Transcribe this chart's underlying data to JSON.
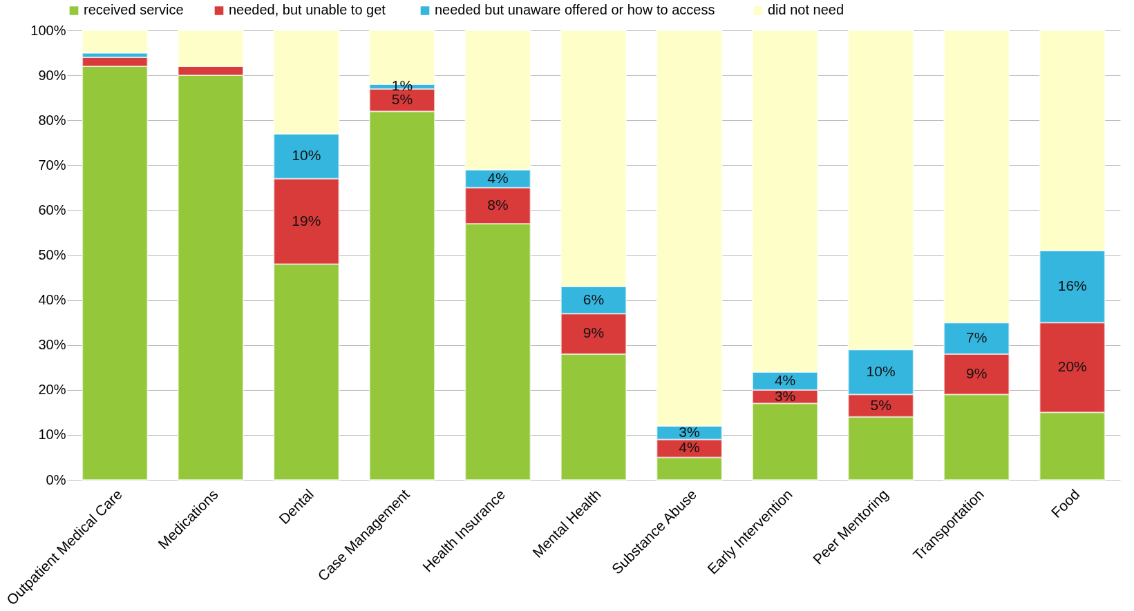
{
  "chart_data": {
    "type": "bar",
    "stacked": true,
    "categories": [
      "Outpatient Medical Care",
      "Medications",
      "Dental",
      "Case Management",
      "Health Insurance",
      "Mental Health",
      "Substance Abuse",
      "Early Intervention",
      "Peer Mentoring",
      "Transportation",
      "Food"
    ],
    "series": [
      {
        "name": "received service",
        "color": "#94c83a",
        "values": [
          92,
          90,
          48,
          82,
          57,
          28,
          5,
          17,
          14,
          19,
          15
        ],
        "value_labels": [
          null,
          null,
          null,
          null,
          null,
          null,
          null,
          null,
          null,
          null,
          null
        ]
      },
      {
        "name": "needed, but  unable to get",
        "color": "#d93a3a",
        "values": [
          2,
          2,
          19,
          5,
          8,
          9,
          4,
          3,
          5,
          9,
          20
        ],
        "value_labels": [
          null,
          null,
          "19%",
          "5%",
          "8%",
          "9%",
          "4%",
          "3%",
          "5%",
          "9%",
          "20%"
        ]
      },
      {
        "name": "needed but unaware  offered or how to  access",
        "color": "#35b6de",
        "values": [
          1,
          0,
          10,
          1,
          4,
          6,
          3,
          4,
          10,
          7,
          16
        ],
        "value_labels": [
          null,
          null,
          "10%",
          "1%",
          "4%",
          "6%",
          "3%",
          "4%",
          "10%",
          "7%",
          "16%"
        ]
      },
      {
        "name": "did not need",
        "color": "#fefec8",
        "values": [
          5,
          8,
          23,
          12,
          31,
          57,
          88,
          76,
          71,
          65,
          49
        ],
        "value_labels": [
          null,
          null,
          null,
          null,
          null,
          null,
          null,
          null,
          null,
          null,
          null
        ]
      }
    ],
    "ylim": [
      0,
      100
    ],
    "yticks": [
      {
        "value": 0,
        "label": "0%"
      },
      {
        "value": 10,
        "label": "10%"
      },
      {
        "value": 20,
        "label": "20%"
      },
      {
        "value": 30,
        "label": "30%"
      },
      {
        "value": 40,
        "label": "40%"
      },
      {
        "value": 50,
        "label": "50%"
      },
      {
        "value": 60,
        "label": "60%"
      },
      {
        "value": 70,
        "label": "70%"
      },
      {
        "value": 80,
        "label": "80%"
      },
      {
        "value": 90,
        "label": "90%"
      },
      {
        "value": 100,
        "label": "100%"
      }
    ],
    "grid": "y",
    "legend": "top"
  }
}
